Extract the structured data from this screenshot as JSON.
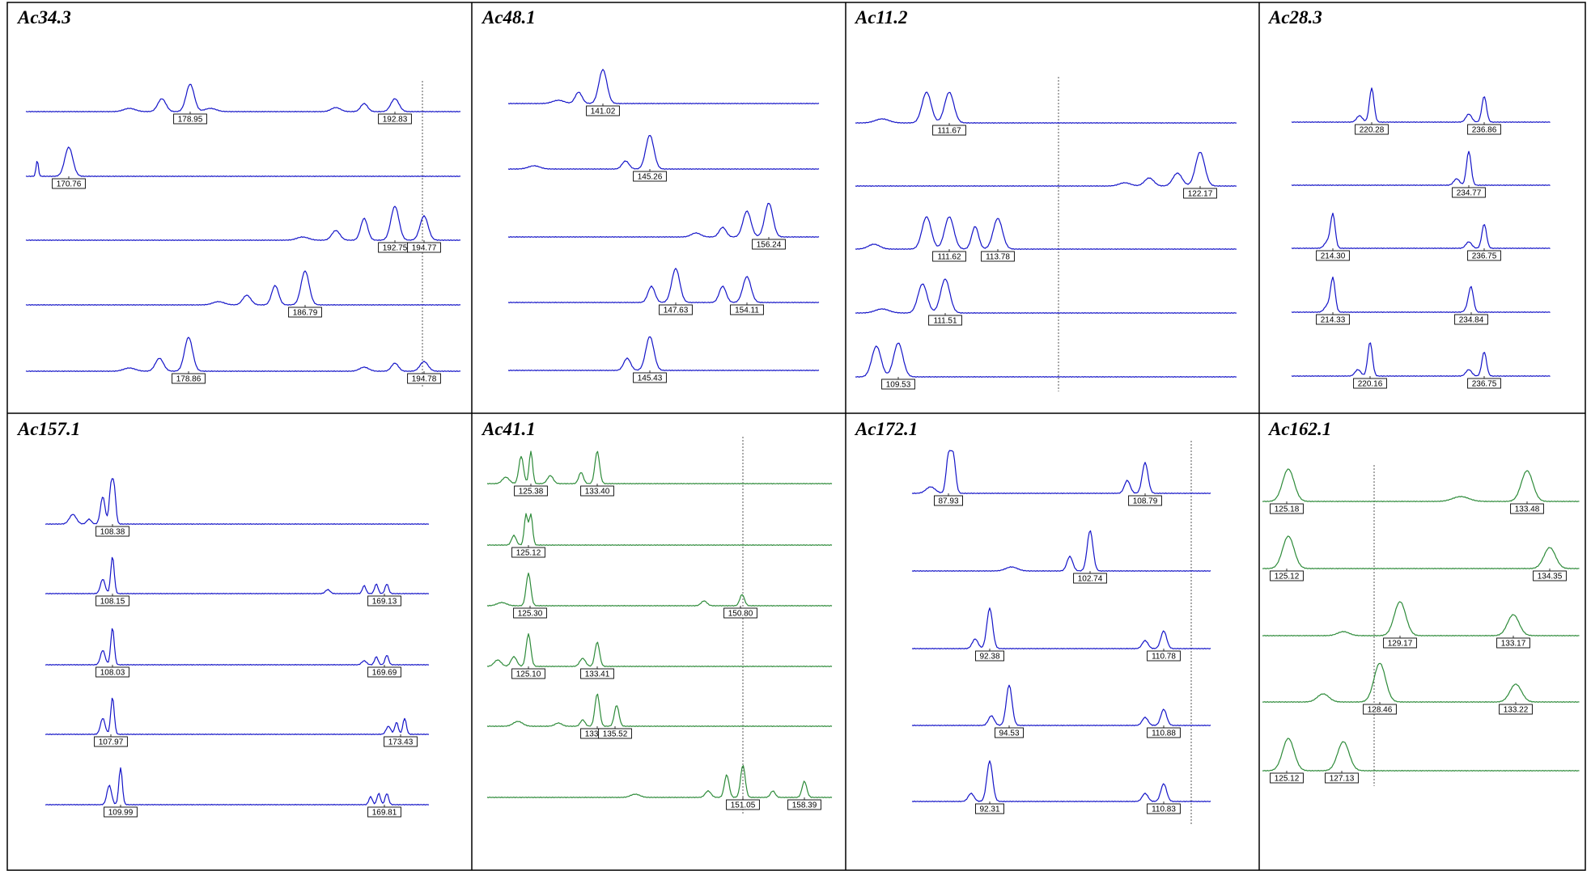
{
  "colors": {
    "blue_trace": "#1515c8",
    "green_trace": "#2e8b3a",
    "border": "#000000"
  },
  "panels": [
    {
      "title": "Ac34.3",
      "color": "blue",
      "traces": [
        {
          "labels": [
            "178.95",
            "192.83"
          ]
        },
        {
          "labels": [
            "170.76"
          ]
        },
        {
          "labels": [
            "192.75",
            "194.77"
          ]
        },
        {
          "labels": [
            "186.79"
          ]
        },
        {
          "labels": [
            "178.86",
            "194.78"
          ]
        }
      ]
    },
    {
      "title": "Ac48.1",
      "color": "blue",
      "traces": [
        {
          "labels": [
            "141.02"
          ]
        },
        {
          "labels": [
            "145.26"
          ]
        },
        {
          "labels": [
            "156.24"
          ]
        },
        {
          "labels": [
            "147.63",
            "154.11"
          ]
        },
        {
          "labels": [
            "145.43"
          ]
        }
      ]
    },
    {
      "title": "Ac11.2",
      "color": "blue",
      "traces": [
        {
          "labels": [
            "111.67"
          ]
        },
        {
          "labels": [
            "122.17"
          ]
        },
        {
          "labels": [
            "111.62",
            "113.78"
          ]
        },
        {
          "labels": [
            "111.51"
          ]
        },
        {
          "labels": [
            "109.53"
          ]
        }
      ]
    },
    {
      "title": "Ac28.3",
      "color": "blue",
      "traces": [
        {
          "labels": [
            "220.28",
            "236.86"
          ]
        },
        {
          "labels": [
            "234.77"
          ]
        },
        {
          "labels": [
            "214.30",
            "236.75"
          ]
        },
        {
          "labels": [
            "214.33",
            "234.84"
          ]
        },
        {
          "labels": [
            "220.16",
            "236.75"
          ]
        }
      ]
    },
    {
      "title": "Ac157.1",
      "color": "blue",
      "traces": [
        {
          "labels": [
            "108.38"
          ]
        },
        {
          "labels": [
            "108.15",
            "169.13"
          ]
        },
        {
          "labels": [
            "108.03",
            "169.69"
          ]
        },
        {
          "labels": [
            "107.97",
            "173.43"
          ]
        },
        {
          "labels": [
            "109.99",
            "169.81"
          ]
        }
      ]
    },
    {
      "title": "Ac41.1",
      "color": "green",
      "traces": [
        {
          "labels": [
            "125.38",
            "133.40"
          ]
        },
        {
          "labels": [
            "125.12"
          ]
        },
        {
          "labels": [
            "125.30",
            "150.80"
          ]
        },
        {
          "labels": [
            "125.10",
            "133.41"
          ]
        },
        {
          "labels": [
            "133.51",
            "135.52"
          ]
        },
        {
          "labels": [
            "151.05",
            "158.39"
          ]
        }
      ]
    },
    {
      "title": "Ac172.1",
      "color": "blue",
      "traces": [
        {
          "labels": [
            "87.93",
            "108.79"
          ]
        },
        {
          "labels": [
            "102.74"
          ]
        },
        {
          "labels": [
            "92.38",
            "110.78"
          ]
        },
        {
          "labels": [
            "94.53",
            "110.88"
          ]
        },
        {
          "labels": [
            "92.31",
            "110.83"
          ]
        }
      ]
    },
    {
      "title": "Ac162.1",
      "color": "green",
      "traces": [
        {
          "labels": [
            "125.18",
            "133.48"
          ]
        },
        {
          "labels": [
            "125.12",
            "134.35"
          ]
        },
        {
          "labels": [
            "129.17",
            "133.17"
          ]
        },
        {
          "labels": [
            "128.46",
            "133.22"
          ]
        },
        {
          "labels": [
            "125.12",
            "127.13"
          ]
        }
      ]
    }
  ]
}
